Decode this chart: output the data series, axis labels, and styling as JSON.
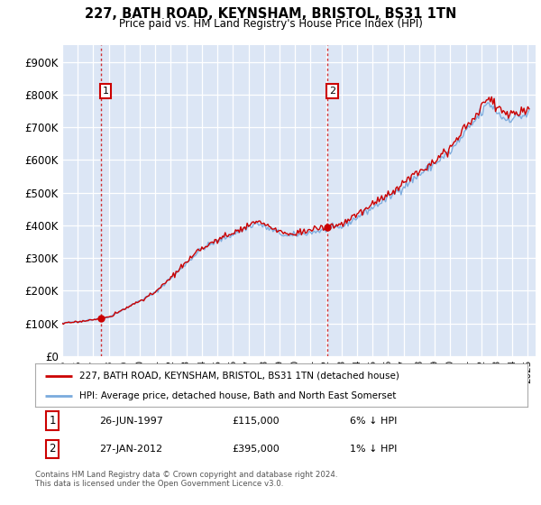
{
  "title": "227, BATH ROAD, KEYNSHAM, BRISTOL, BS31 1TN",
  "subtitle": "Price paid vs. HM Land Registry's House Price Index (HPI)",
  "legend_label_red": "227, BATH ROAD, KEYNSHAM, BRISTOL, BS31 1TN (detached house)",
  "legend_label_blue": "HPI: Average price, detached house, Bath and North East Somerset",
  "annotation1_label": "1",
  "annotation1_date": "26-JUN-1997",
  "annotation1_price": 115000,
  "annotation1_pct": "6% ↓ HPI",
  "annotation2_label": "2",
  "annotation2_date": "27-JAN-2012",
  "annotation2_price": 395000,
  "annotation2_pct": "1% ↓ HPI",
  "footer": "Contains HM Land Registry data © Crown copyright and database right 2024.\nThis data is licensed under the Open Government Licence v3.0.",
  "ylim": [
    0,
    950000
  ],
  "yticks": [
    0,
    100000,
    200000,
    300000,
    400000,
    500000,
    600000,
    700000,
    800000,
    900000
  ],
  "ytick_labels": [
    "£0",
    "£100K",
    "£200K",
    "£300K",
    "£400K",
    "£500K",
    "£600K",
    "£700K",
    "£800K",
    "£900K"
  ],
  "bg_color": "#dce6f5",
  "red_color": "#cc0000",
  "blue_color": "#7aaadd",
  "marker_color": "#cc0000",
  "sale1_year": 1997.46,
  "sale2_year": 2012.08,
  "xmin": 1995,
  "xmax": 2025.5
}
